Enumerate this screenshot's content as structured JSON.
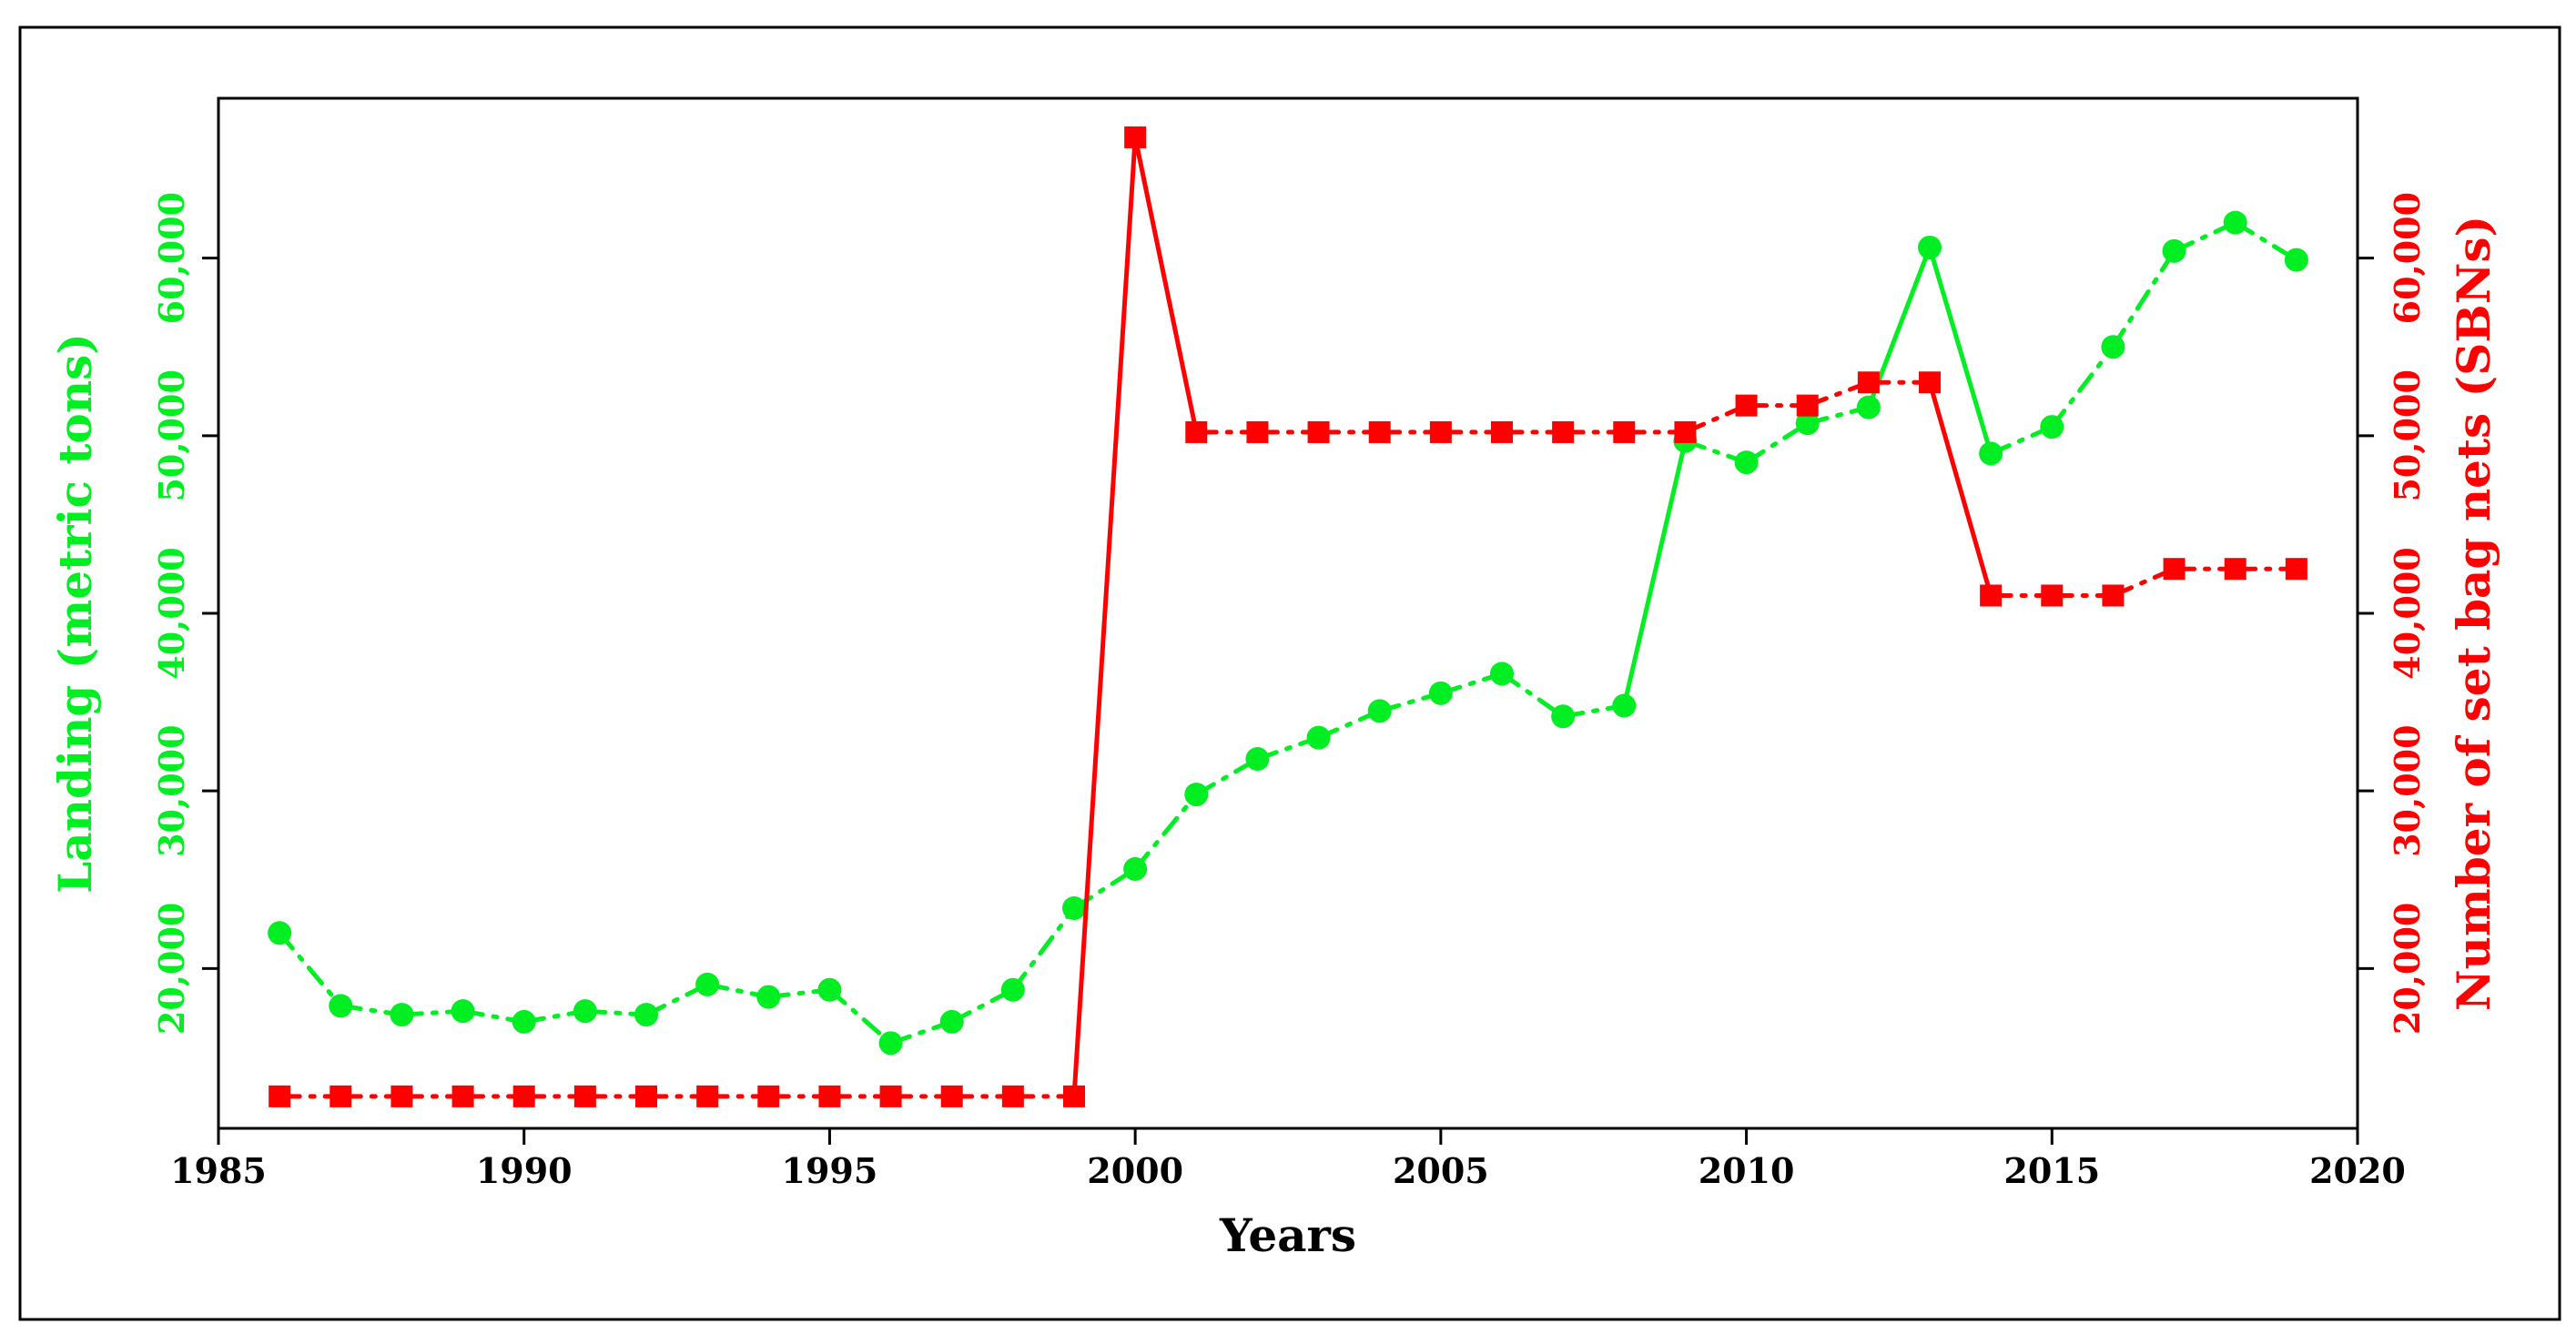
{
  "chart_data": {
    "type": "line",
    "xlabel": "Years",
    "ylabel_left": "Landing (metric tons)",
    "ylabel_right": "Number of set bag nets (SBNs)",
    "xlim": [
      1985,
      2020
    ],
    "ylim": [
      11000,
      69000
    ],
    "x_ticks": [
      1985,
      1990,
      1995,
      2000,
      2005,
      2010,
      2015,
      2020
    ],
    "x_tick_labels": [
      "1985",
      "1990",
      "1995",
      "2000",
      "2005",
      "2010",
      "2015",
      "2020"
    ],
    "y_ticks": [
      20000,
      30000,
      40000,
      50000,
      60000
    ],
    "y_tick_labels": [
      "20,000",
      "30,000",
      "40,000",
      "50,000",
      "60,000"
    ],
    "colors": {
      "landing": "#00ee22",
      "sbn": "#ff0000",
      "axes": "#000000"
    },
    "x": [
      1986,
      1987,
      1988,
      1989,
      1990,
      1991,
      1992,
      1993,
      1994,
      1995,
      1996,
      1997,
      1998,
      1999,
      2000,
      2001,
      2002,
      2003,
      2004,
      2005,
      2006,
      2007,
      2008,
      2009,
      2010,
      2011,
      2012,
      2013,
      2014,
      2015,
      2016,
      2017,
      2018,
      2019
    ],
    "series": [
      {
        "key": "landing",
        "axis": "left",
        "marker": "circle",
        "values": [
          22000,
          17900,
          17400,
          17600,
          17000,
          17600,
          17400,
          19100,
          18400,
          18800,
          15800,
          17000,
          18800,
          23400,
          25600,
          29800,
          31800,
          33000,
          34500,
          35500,
          36600,
          34200,
          34800,
          49700,
          48500,
          50700,
          51600,
          60600,
          49000,
          50500,
          55000,
          60400,
          62000,
          59900
        ]
      },
      {
        "key": "sbn",
        "axis": "right",
        "marker": "square",
        "values": [
          12800,
          12800,
          12800,
          12800,
          12800,
          12800,
          12800,
          12800,
          12800,
          12800,
          12800,
          12800,
          12800,
          12800,
          66800,
          50200,
          50200,
          50200,
          50200,
          50200,
          50200,
          50200,
          50200,
          50200,
          51700,
          51700,
          53000,
          53000,
          41000,
          41000,
          41000,
          42500,
          42500,
          42500
        ]
      }
    ]
  }
}
